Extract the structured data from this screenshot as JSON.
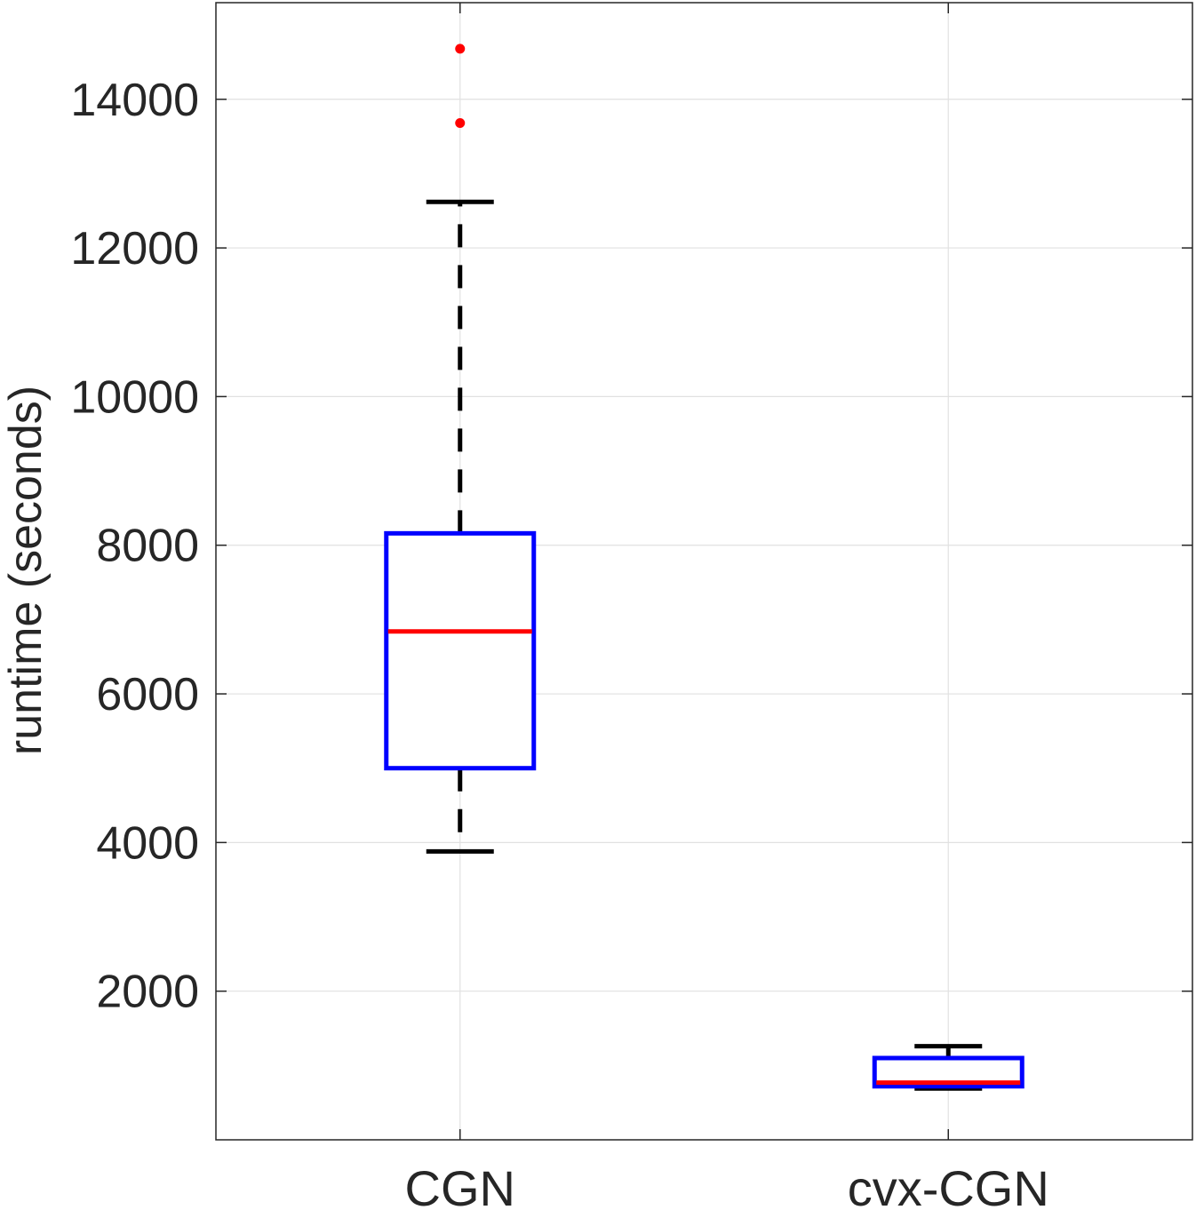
{
  "chart_data": {
    "type": "boxplot",
    "title": "",
    "xlabel": "",
    "ylabel": "runtime (seconds)",
    "ylim": [
      0,
      15300
    ],
    "yticks": [
      2000,
      4000,
      6000,
      8000,
      10000,
      12000,
      14000
    ],
    "grid": true,
    "categories": [
      "CGN",
      "cvx-CGN"
    ],
    "boxes": [
      {
        "category": "CGN",
        "whisker_low": 3880,
        "q1": 5000,
        "median": 6840,
        "q3": 8160,
        "whisker_high": 12620,
        "outliers": [
          13680,
          14680
        ]
      },
      {
        "category": "cvx-CGN",
        "whisker_low": 690,
        "q1": 720,
        "median": 770,
        "q3": 1100,
        "whisker_high": 1260,
        "outliers": []
      }
    ],
    "colors": {
      "box": "#0000ff",
      "median": "#ff0000",
      "whisker": "#000000",
      "outlier": "#ff0000",
      "grid": "#e1e1e1",
      "axis": "#262626"
    }
  }
}
